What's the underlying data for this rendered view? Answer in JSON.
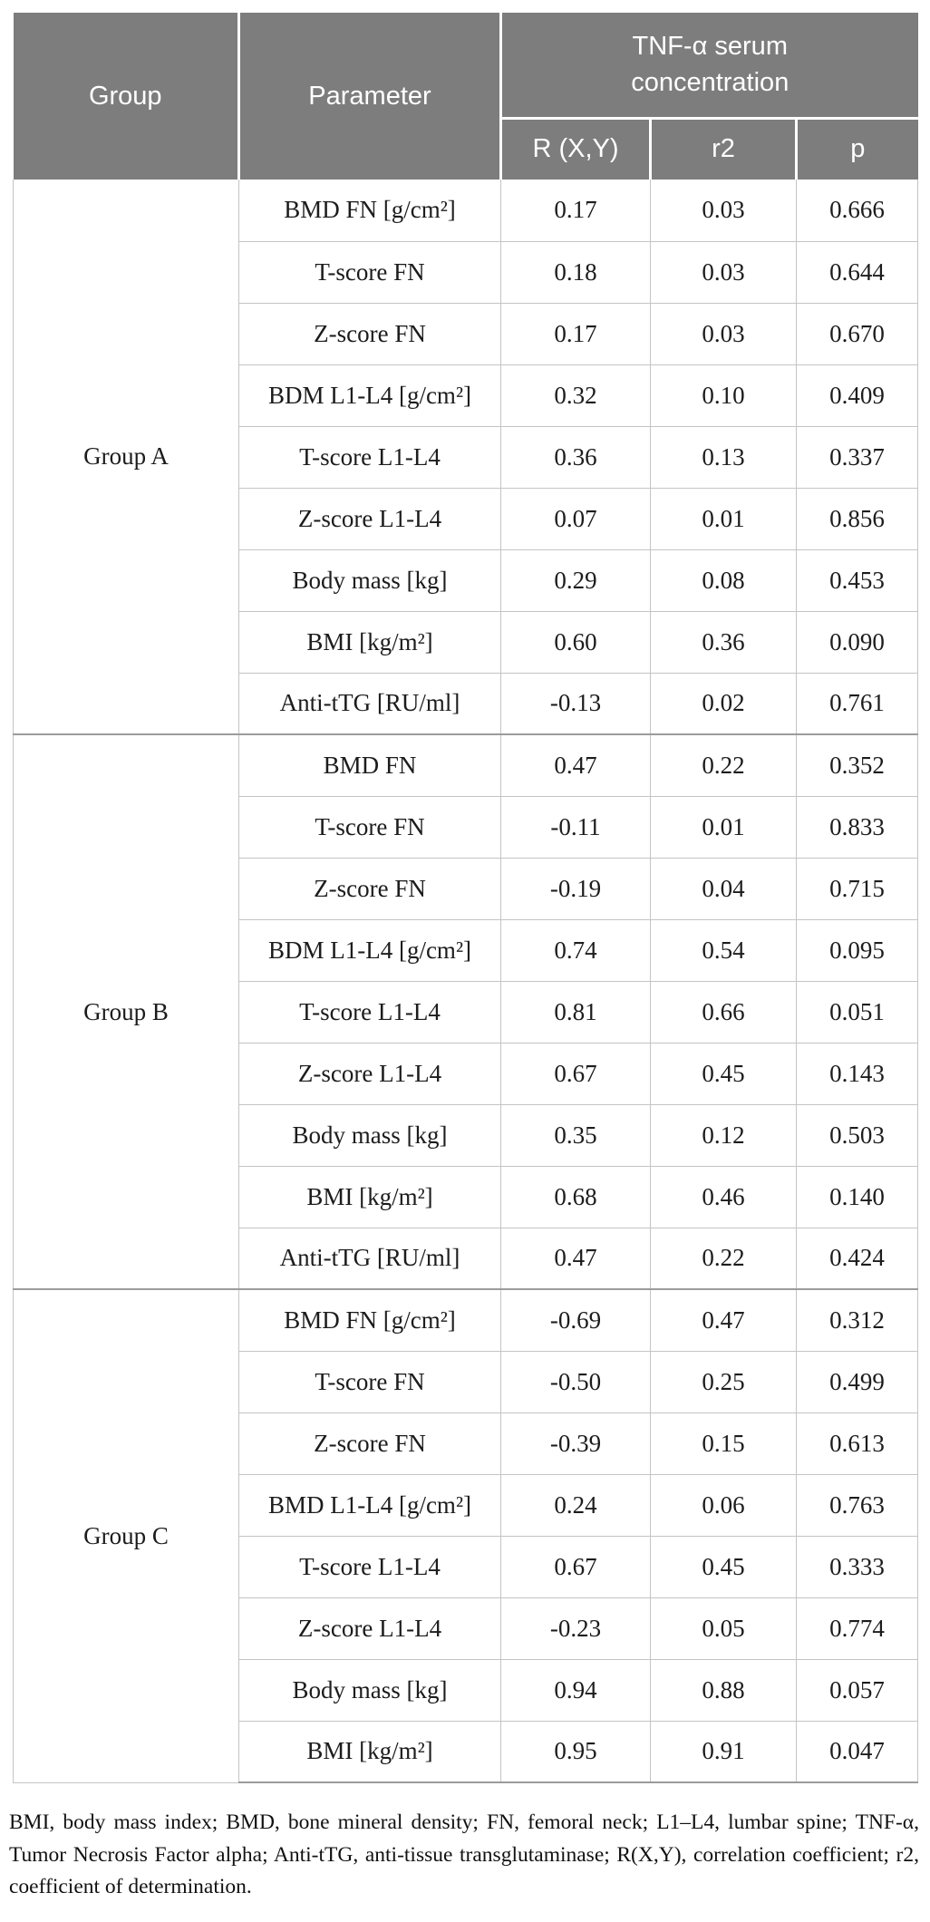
{
  "table": {
    "header": {
      "group": "Group",
      "parameter": "Parameter",
      "tnf_span": "TNF-α serum\nconcentration",
      "subcols": [
        "R (X,Y)",
        "r2",
        "p"
      ]
    },
    "groups": [
      {
        "label": "Group A",
        "rows": [
          [
            "BMD FN [g/cm²]",
            "0.17",
            "0.03",
            "0.666"
          ],
          [
            "T-score FN",
            "0.18",
            "0.03",
            "0.644"
          ],
          [
            "Z-score FN",
            "0.17",
            "0.03",
            "0.670"
          ],
          [
            "BDM L1-L4 [g/cm²]",
            "0.32",
            "0.10",
            "0.409"
          ],
          [
            "T-score L1-L4",
            "0.36",
            "0.13",
            "0.337"
          ],
          [
            "Z-score L1-L4",
            "0.07",
            "0.01",
            "0.856"
          ],
          [
            "Body mass [kg]",
            "0.29",
            "0.08",
            "0.453"
          ],
          [
            "BMI [kg/m²]",
            "0.60",
            "0.36",
            "0.090"
          ],
          [
            "Anti-tTG [RU/ml]",
            "-0.13",
            "0.02",
            "0.761"
          ]
        ]
      },
      {
        "label": "Group B",
        "rows": [
          [
            "BMD FN",
            "0.47",
            "0.22",
            "0.352"
          ],
          [
            "T-score FN",
            "-0.11",
            "0.01",
            "0.833"
          ],
          [
            "Z-score FN",
            "-0.19",
            "0.04",
            "0.715"
          ],
          [
            "BDM L1-L4 [g/cm²]",
            "0.74",
            "0.54",
            "0.095"
          ],
          [
            "T-score L1-L4",
            "0.81",
            "0.66",
            "0.051"
          ],
          [
            "Z-score L1-L4",
            "0.67",
            "0.45",
            "0.143"
          ],
          [
            "Body mass [kg]",
            "0.35",
            "0.12",
            "0.503"
          ],
          [
            "BMI [kg/m²]",
            "0.68",
            "0.46",
            "0.140"
          ],
          [
            "Anti-tTG [RU/ml]",
            "0.47",
            "0.22",
            "0.424"
          ]
        ]
      },
      {
        "label": "Group C",
        "rows": [
          [
            "BMD FN [g/cm²]",
            "-0.69",
            "0.47",
            "0.312"
          ],
          [
            "T-score FN",
            "-0.50",
            "0.25",
            "0.499"
          ],
          [
            "Z-score FN",
            "-0.39",
            "0.15",
            "0.613"
          ],
          [
            "BMD L1-L4 [g/cm²]",
            "0.24",
            "0.06",
            "0.763"
          ],
          [
            "T-score L1-L4",
            "0.67",
            "0.45",
            "0.333"
          ],
          [
            "Z-score L1-L4",
            "-0.23",
            "0.05",
            "0.774"
          ],
          [
            "Body mass [kg]",
            "0.94",
            "0.88",
            "0.057"
          ],
          [
            "BMI [kg/m²]",
            "0.95",
            "0.91",
            "0.047"
          ]
        ]
      }
    ]
  },
  "footnote": "BMI, body mass index; BMD, bone mineral density; FN, femoral neck; L1–L4, lumbar spine; TNF-α, Tumor Necrosis Factor alpha; Anti-tTG, anti-tissue transglutaminase; R(X,Y), correlation coefficient; r2, coefficient of determination.",
  "colors": {
    "header_bg": "#7d7d7d",
    "header_text": "#ffffff",
    "body_text": "#1c1c1c",
    "grid_line": "#c4c4c4",
    "group_separator": "#9b9b9b"
  }
}
